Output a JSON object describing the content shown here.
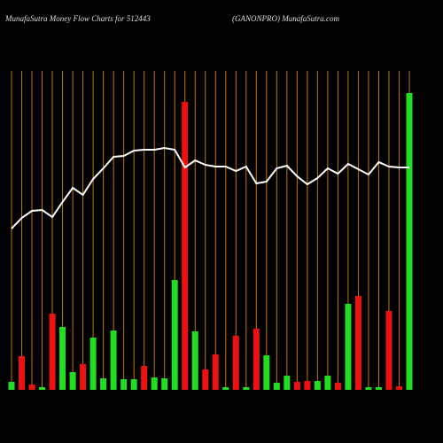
{
  "chart_data": {
    "type": "bar-line",
    "title": "MunafaSutra  Money Flow  Charts for 512443",
    "subtitle": "(GANONPRO) MunafaSutra.com",
    "categories": [
      null,
      null,
      null,
      null,
      null,
      null,
      null,
      null,
      null,
      null,
      null,
      null,
      null,
      null,
      null,
      null,
      null,
      null,
      null,
      null,
      null,
      null,
      null,
      null,
      null,
      null,
      null,
      null,
      null,
      null,
      null,
      null,
      null,
      null,
      null,
      null,
      null,
      null,
      null,
      null
    ],
    "ylim": [
      0,
      340
    ],
    "grid": true,
    "grid_color": "#c87800",
    "background": "#000000",
    "series": [
      {
        "type": "bar",
        "colors": [
          "#22dd22",
          "#ee1111",
          "#ee1111",
          "#22dd22",
          "#ee1111",
          "#22dd22",
          "#22dd22",
          "#ee1111",
          "#22dd22",
          "#22dd22",
          "#22dd22",
          "#22dd22",
          "#22dd22",
          "#ee1111",
          "#22dd22",
          "#22dd22",
          "#22dd22",
          "#ee1111",
          "#22dd22",
          "#ee1111",
          "#ee1111",
          "#22dd22",
          "#ee1111",
          "#22dd22",
          "#ee1111",
          "#22dd22",
          "#22dd22",
          "#22dd22",
          "#ee1111",
          "#ee1111",
          "#22dd22",
          "#22dd22",
          "#ee1111",
          "#22dd22",
          "#ee1111",
          "#22dd22",
          "#22dd22",
          "#ee1111",
          "#ee1111",
          "#22dd22"
        ],
        "values": [
          9,
          38,
          6,
          3,
          86,
          71,
          20,
          29,
          59,
          13,
          67,
          12,
          12,
          27,
          14,
          13,
          124,
          325,
          66,
          23,
          40,
          3,
          61,
          3,
          69,
          39,
          8,
          16,
          9,
          10,
          10,
          16,
          8,
          97,
          106,
          3,
          3,
          89,
          4,
          335
        ]
      },
      {
        "type": "line",
        "color": "#ffffff",
        "values": [
          182,
          194,
          202,
          203,
          195,
          212,
          228,
          220,
          238,
          250,
          263,
          264,
          270,
          271,
          271,
          273,
          271,
          251,
          259,
          254,
          252,
          252,
          247,
          252,
          233,
          235,
          250,
          253,
          241,
          232,
          239,
          250,
          244,
          255,
          249,
          243,
          257,
          252,
          251,
          251
        ]
      }
    ]
  }
}
